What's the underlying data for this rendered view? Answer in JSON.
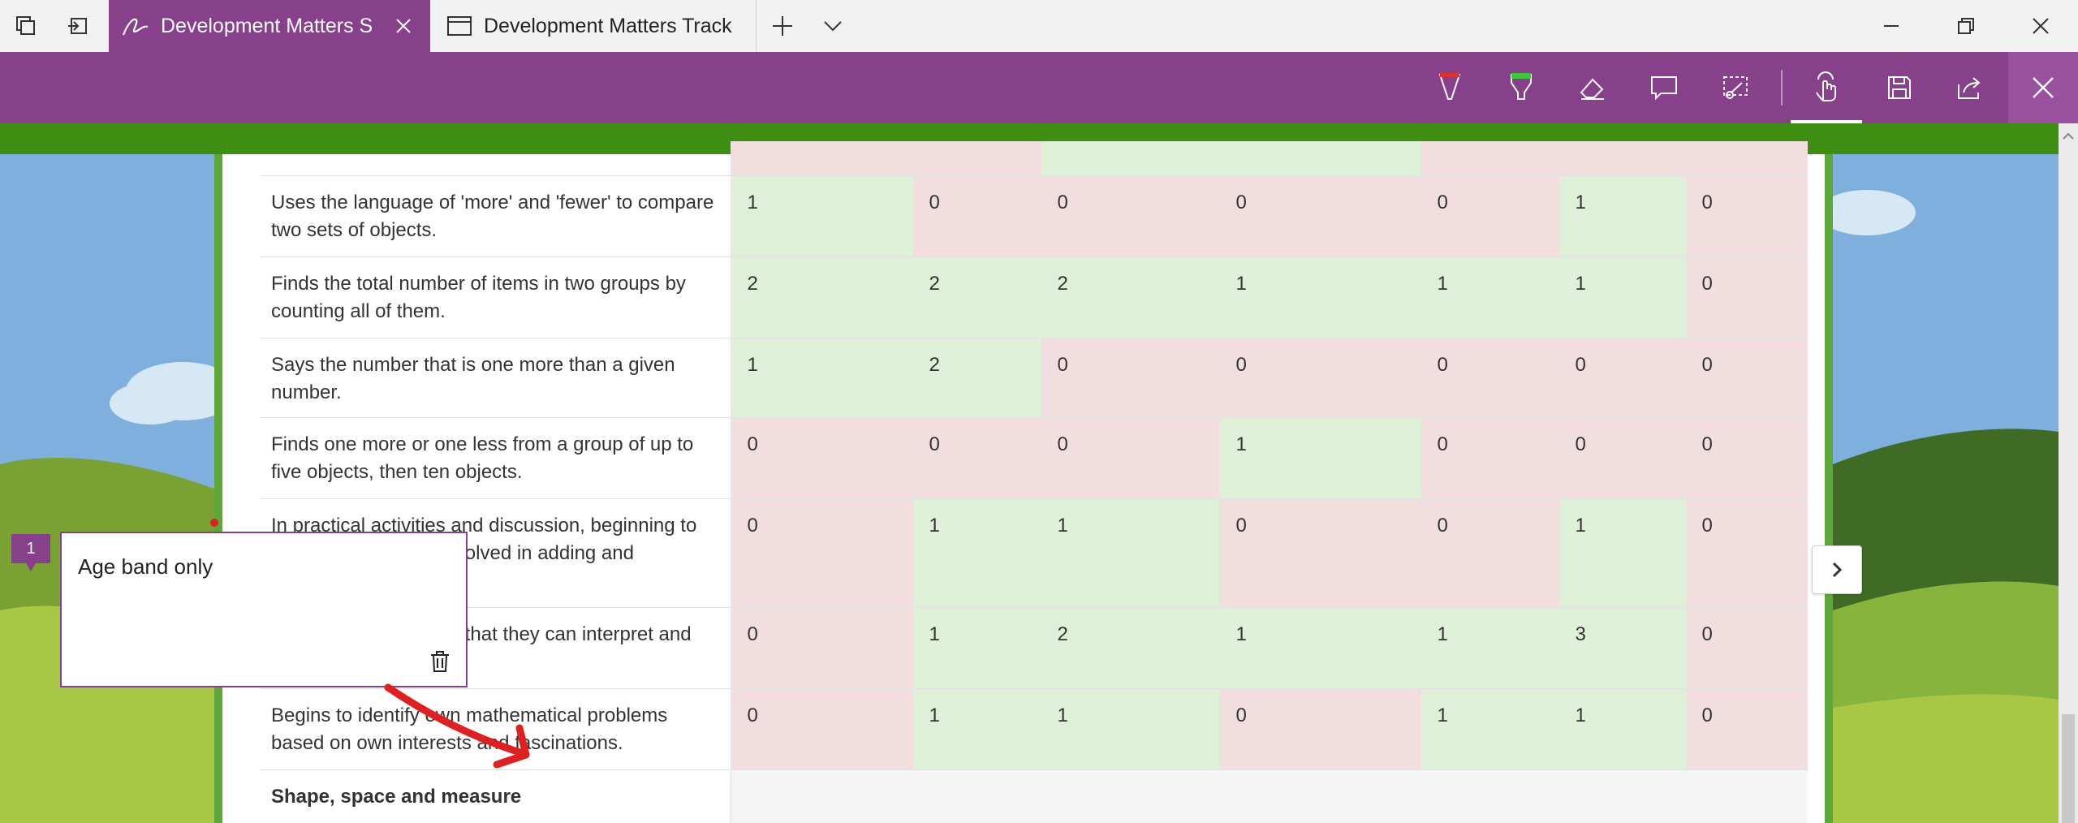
{
  "tabs": [
    {
      "title": "Development Matters S",
      "active": true
    },
    {
      "title": "Development Matters Track",
      "active": false
    }
  ],
  "toolbar": {
    "tools": [
      "ballpoint-pen-icon",
      "highlighter-icon",
      "eraser-icon",
      "add-note-icon",
      "clip-icon",
      "touch-writing-icon",
      "save-icon",
      "share-icon",
      "close-icon"
    ],
    "selected_tool": "touch-writing-icon",
    "pen_color": "#e03030",
    "highlighter_color": "#3cc83c"
  },
  "table": {
    "rows": [
      {
        "label": "Uses the language of 'more' and 'fewer' to compare two sets of objects.",
        "values": [
          "1",
          "0",
          "0",
          "0",
          "0",
          "1",
          "0"
        ]
      },
      {
        "label": "Finds the total number of items in two groups by counting all of them.",
        "values": [
          "2",
          "2",
          "2",
          "1",
          "1",
          "1",
          "0"
        ]
      },
      {
        "label": "Says the number that is one more than a given number.",
        "values": [
          "1",
          "2",
          "0",
          "0",
          "0",
          "0",
          "0"
        ]
      },
      {
        "label": "Finds one more or one less from a group of up to five objects, then ten objects.",
        "values": [
          "0",
          "0",
          "0",
          "1",
          "0",
          "0",
          "0"
        ]
      },
      {
        "label": "In practical activities and discussion, beginning to use the vocabulary involved in adding and subtracting.",
        "values": [
          "0",
          "1",
          "1",
          "0",
          "0",
          "1",
          "0"
        ]
      },
      {
        "label": "Records, using marks that they can interpret and explain.",
        "values": [
          "0",
          "1",
          "2",
          "1",
          "1",
          "3",
          "0"
        ]
      },
      {
        "label": "Begins to identify own mathematical problems based on own interests and fascinations.",
        "values": [
          "0",
          "1",
          "1",
          "0",
          "1",
          "1",
          "0"
        ]
      }
    ],
    "section_heading": "Shape, space and measure",
    "colors": {
      "positive": "#dff0d8",
      "zero": "#f2dede"
    }
  },
  "comment": {
    "number": "1",
    "text": "Age band only"
  }
}
